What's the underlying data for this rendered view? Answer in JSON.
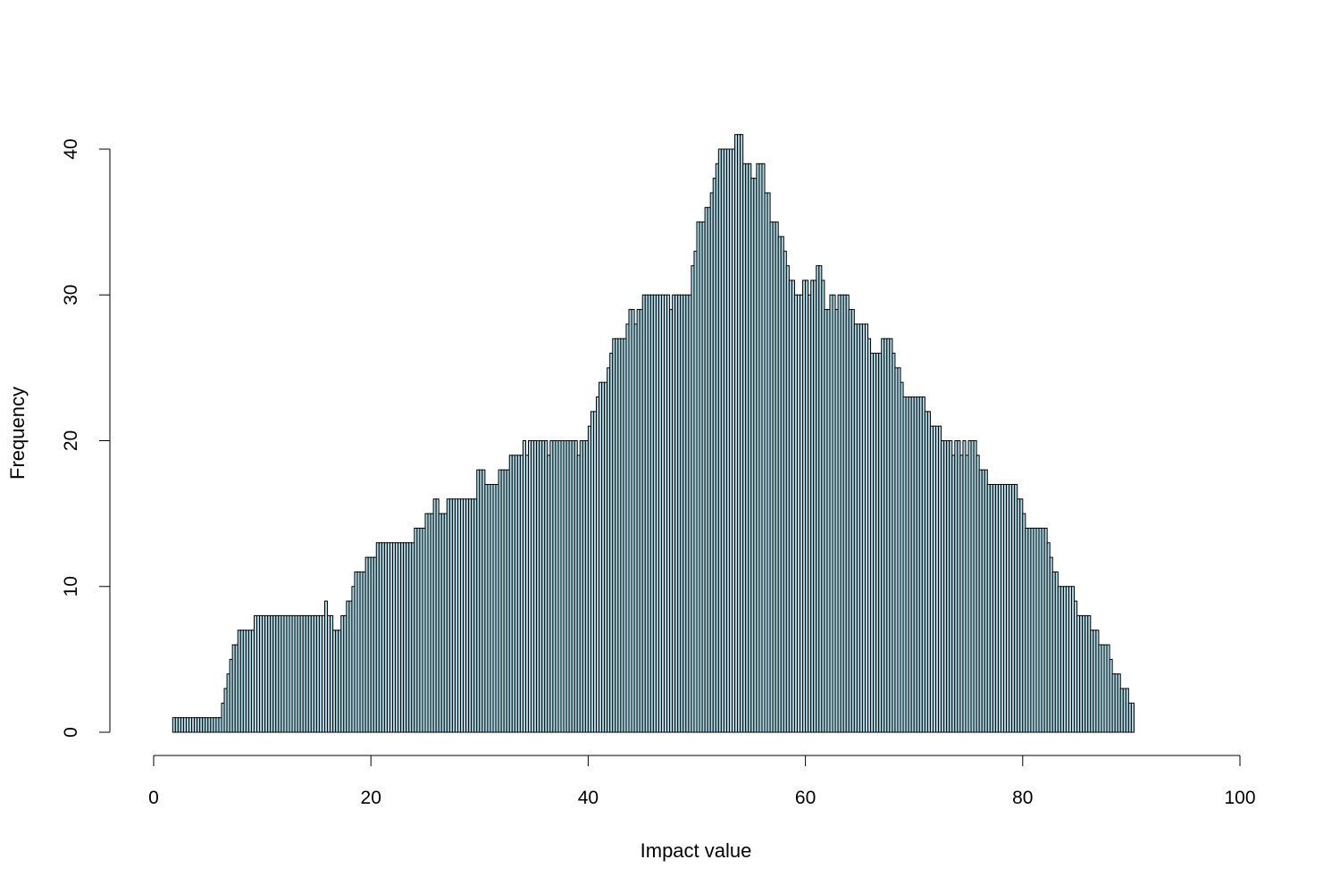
{
  "chart_data": {
    "type": "bar",
    "title": "",
    "xlabel": "Impact value",
    "ylabel": "Frequency",
    "xlim": [
      0,
      100
    ],
    "ylim": [
      0,
      41
    ],
    "bin_width": 0.25,
    "x_start": 0,
    "x_ticks": [
      "0",
      "20",
      "40",
      "60",
      "80",
      "100"
    ],
    "y_ticks": [
      "0",
      "10",
      "20",
      "30",
      "40"
    ],
    "grid": false,
    "legend": "none",
    "colors": {
      "bar_fill": "#add8e6",
      "bar_stroke": "#000000",
      "axis": "#000000"
    },
    "values": [
      0,
      0,
      0,
      0,
      0,
      0,
      0,
      1,
      1,
      1,
      1,
      1,
      1,
      1,
      1,
      1,
      1,
      1,
      1,
      1,
      1,
      1,
      1,
      1,
      1,
      2,
      3,
      4,
      5,
      6,
      6,
      7,
      7,
      7,
      7,
      7,
      7,
      8,
      8,
      8,
      8,
      8,
      8,
      8,
      8,
      8,
      8,
      8,
      8,
      8,
      8,
      8,
      8,
      8,
      8,
      8,
      8,
      8,
      8,
      8,
      8,
      8,
      8,
      9,
      8,
      8,
      7,
      7,
      7,
      8,
      8,
      9,
      9,
      10,
      11,
      11,
      11,
      11,
      12,
      12,
      12,
      12,
      13,
      13,
      13,
      13,
      13,
      13,
      13,
      13,
      13,
      13,
      13,
      13,
      13,
      13,
      14,
      14,
      14,
      14,
      15,
      15,
      15,
      16,
      16,
      15,
      15,
      15,
      16,
      16,
      16,
      16,
      16,
      16,
      16,
      16,
      16,
      16,
      16,
      18,
      18,
      18,
      17,
      17,
      17,
      17,
      17,
      18,
      18,
      18,
      18,
      19,
      19,
      19,
      19,
      19,
      20,
      19,
      20,
      20,
      20,
      20,
      20,
      20,
      20,
      19,
      20,
      20,
      20,
      20,
      20,
      20,
      20,
      20,
      20,
      20,
      19,
      20,
      20,
      20,
      21,
      22,
      22,
      23,
      24,
      24,
      24,
      25,
      26,
      27,
      27,
      27,
      27,
      27,
      28,
      29,
      29,
      28,
      29,
      29,
      30,
      30,
      30,
      30,
      30,
      30,
      30,
      30,
      30,
      30,
      29,
      30,
      30,
      30,
      30,
      30,
      30,
      30,
      32,
      33,
      35,
      35,
      35,
      36,
      36,
      37,
      38,
      39,
      40,
      40,
      40,
      40,
      40,
      40,
      41,
      41,
      41,
      39,
      39,
      39,
      38,
      38,
      39,
      39,
      39,
      37,
      37,
      35,
      35,
      35,
      34,
      34,
      33,
      32,
      31,
      31,
      30,
      30,
      30,
      31,
      31,
      30,
      31,
      31,
      32,
      32,
      31,
      29,
      29,
      30,
      30,
      29,
      30,
      30,
      30,
      30,
      29,
      29,
      28,
      28,
      28,
      28,
      28,
      27,
      26,
      26,
      26,
      26,
      27,
      27,
      27,
      27,
      26,
      25,
      25,
      24,
      23,
      23,
      23,
      23,
      23,
      23,
      23,
      23,
      22,
      22,
      21,
      21,
      21,
      21,
      20,
      20,
      20,
      20,
      19,
      20,
      20,
      19,
      20,
      19,
      20,
      20,
      20,
      19,
      18,
      18,
      18,
      17,
      17,
      17,
      17,
      17,
      17,
      17,
      17,
      17,
      17,
      17,
      16,
      16,
      15,
      14,
      14,
      14,
      14,
      14,
      14,
      14,
      14,
      13,
      12,
      11,
      11,
      10,
      10,
      10,
      10,
      10,
      10,
      9,
      8,
      8,
      8,
      8,
      8,
      7,
      7,
      7,
      6,
      6,
      6,
      6,
      5,
      4,
      4,
      4,
      3,
      3,
      3,
      2,
      2
    ]
  }
}
